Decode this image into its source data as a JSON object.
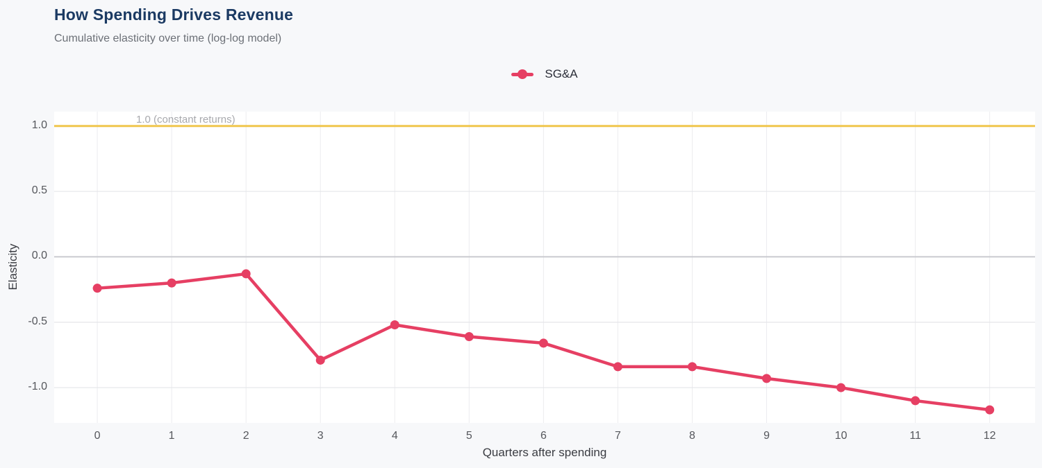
{
  "header": {
    "title": "How Spending Drives Revenue",
    "subtitle": "Cumulative elasticity over time (log-log model)"
  },
  "legend": {
    "items": [
      {
        "label": "SG&A",
        "color": "#e63f63"
      }
    ]
  },
  "axes": {
    "x_label": "Quarters after spending",
    "y_label": "Elasticity"
  },
  "annotation": {
    "text": "1.0 (constant returns)"
  },
  "colors": {
    "page_background": "#f7f8fa",
    "plot_background": "#ffffff",
    "series_pink": "#e63f63",
    "reference_yellow": "#f0c64d",
    "grid": "#e4e5e9",
    "grid_vertical": "#ececef",
    "zero_line": "#c9cacf",
    "title_navy": "#1b3a63"
  },
  "chart_data": {
    "type": "line",
    "title": "How Spending Drives Revenue",
    "subtitle": "Cumulative elasticity over time (log-log model)",
    "xlabel": "Quarters after spending",
    "ylabel": "Elasticity",
    "x": [
      0,
      1,
      2,
      3,
      4,
      5,
      6,
      7,
      8,
      9,
      10,
      11,
      12
    ],
    "series": [
      {
        "name": "SG&A",
        "color": "#e63f63",
        "values": [
          -0.24,
          -0.2,
          -0.13,
          -0.79,
          -0.52,
          -0.61,
          -0.66,
          -0.84,
          -0.84,
          -0.93,
          -1.0,
          -1.1,
          -1.17
        ]
      }
    ],
    "reference_line": {
      "value": 1.0,
      "label": "1.0 (constant returns)",
      "color": "#f0c64d"
    },
    "xlim": [
      -0.58,
      12.61
    ],
    "ylim": [
      -1.27,
      1.11
    ],
    "xticks": [
      0,
      1,
      2,
      3,
      4,
      5,
      6,
      7,
      8,
      9,
      10,
      11,
      12
    ],
    "xtick_labels": [
      "0",
      "1",
      "2",
      "3",
      "4",
      "5",
      "6",
      "7",
      "8",
      "9",
      "10",
      "11",
      "12"
    ],
    "yticks": [
      1.0,
      0.5,
      0.0,
      -0.5,
      -1.0
    ],
    "ytick_labels": [
      "1.0",
      "0.5",
      "0.0",
      "-0.5",
      "-1.0"
    ],
    "grid": true,
    "legend_position": "top-center"
  }
}
